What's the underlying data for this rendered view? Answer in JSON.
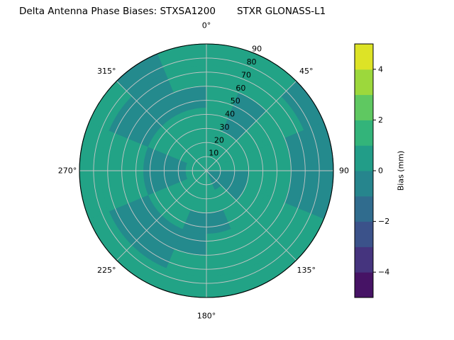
{
  "chart_data": {
    "type": "heatmap",
    "projection": "polar",
    "title": "Delta Antenna Phase Biases: STXSA1200",
    "subtitle": "STXR GLONASS-L1",
    "angle_ticks_deg": [
      0,
      45,
      90,
      135,
      180,
      225,
      270,
      315
    ],
    "angle_tick_labels": [
      "0°",
      "45°",
      "90",
      "135°",
      "180°",
      "225°",
      "270°",
      "315°"
    ],
    "radial_ticks": [
      10,
      20,
      30,
      40,
      50,
      60,
      70,
      80,
      90
    ],
    "radial_label_angle_deg": 22.5,
    "radial_max": 90,
    "colorbar": {
      "label": "Bias (mm)",
      "ticks": [
        -4,
        -2,
        0,
        2,
        4
      ],
      "tick_labels": [
        "−4",
        "−2",
        "0",
        "2",
        "4"
      ],
      "range": [
        -5,
        5
      ],
      "bands": 10,
      "colormap": "viridis"
    },
    "grid_color": "#c6c6c6",
    "outline_color": "#000000",
    "background_bias_mm": 0.8,
    "patch_bias_mm": -0.3,
    "grid": {
      "azimuth_start_deg": 0,
      "azimuth_step_deg": 22.5,
      "zenith_edges": [
        0,
        15,
        30,
        45,
        60,
        75,
        90
      ],
      "values": [
        [
          0.8,
          0.8,
          0.8,
          0.8,
          -0.3,
          -0.3,
          -0.3,
          0.8,
          0.8,
          0.8,
          0.8,
          0.8,
          0.8,
          0.8,
          0.8,
          0.8
        ],
        [
          0.8,
          0.8,
          0.8,
          0.8,
          -0.3,
          -0.3,
          0.8,
          0.8,
          0.8,
          0.8,
          0.8,
          -0.3,
          -0.3,
          0.8,
          0.8,
          0.8
        ],
        [
          0.8,
          -0.3,
          0.8,
          0.8,
          0.8,
          0.8,
          0.8,
          -0.3,
          -0.3,
          0.8,
          0.8,
          -0.3,
          -0.3,
          0.8,
          0.8,
          0.8
        ],
        [
          0.8,
          -0.3,
          0.8,
          0.8,
          0.8,
          0.8,
          0.8,
          0.8,
          -0.3,
          -0.3,
          -0.3,
          0.8,
          0.8,
          -0.3,
          -0.3,
          -0.3
        ],
        [
          0.8,
          0.8,
          0.8,
          -0.3,
          -0.3,
          0.8,
          0.8,
          0.8,
          0.8,
          -0.3,
          -0.3,
          0.8,
          0.8,
          -0.3,
          -0.3,
          0.8
        ],
        [
          0.8,
          0.8,
          -0.3,
          -0.3,
          -0.3,
          0.8,
          0.8,
          0.8,
          0.8,
          0.8,
          0.8,
          0.8,
          0.8,
          0.8,
          -0.3,
          0.8
        ]
      ]
    }
  }
}
